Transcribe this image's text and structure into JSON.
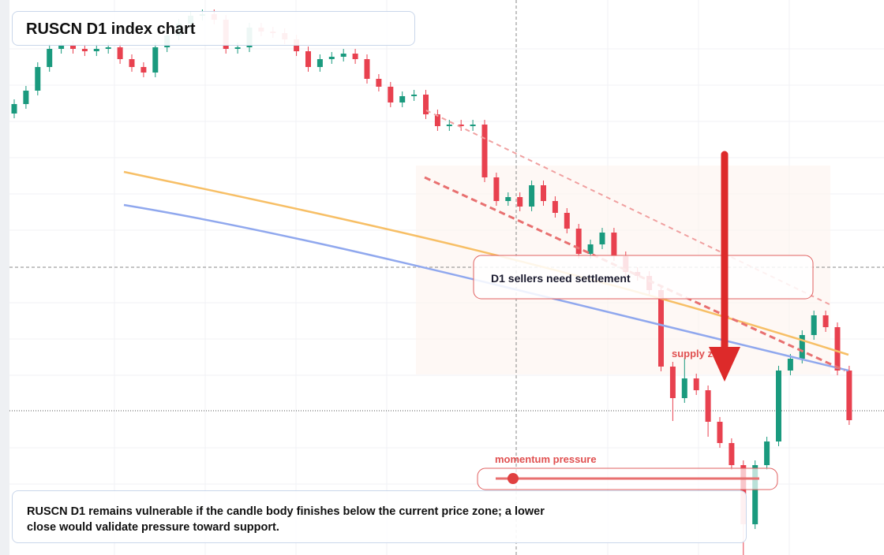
{
  "header": {
    "title": "RUSCN D1 index chart"
  },
  "callouts": {
    "settlement": "D1 sellers need settlement",
    "supply": "supply zone",
    "momentum": "momentum pressure"
  },
  "note": "RUSCN D1 remains vulnerable if the candle body finishes below the current price zone; a lower close would validate pressure toward support.",
  "chart_data": {
    "type": "candlestick",
    "up_color": "#1a9a7e",
    "down_color": "#e8414f",
    "ylim": [
      0,
      704
    ],
    "open": [
      560,
      572,
      589,
      619,
      642,
      646,
      642,
      639,
      642,
      644,
      629,
      619,
      612,
      644,
      659,
      674,
      684,
      686,
      679,
      642,
      644,
      669,
      664,
      662,
      654,
      639,
      619,
      629,
      632,
      636,
      629,
      604,
      594,
      574,
      582,
      584,
      559,
      544,
      546,
      544,
      546,
      479,
      449,
      454,
      442,
      469,
      449,
      434,
      414,
      382,
      394,
      409,
      379,
      359,
      354,
      336,
      239,
      199,
      224,
      209,
      169,
      142,
      114,
      39,
      114,
      144,
      234,
      249,
      279,
      304,
      289,
      234
    ],
    "high": [
      578,
      595,
      625,
      648,
      652,
      652,
      648,
      648,
      650,
      650,
      635,
      625,
      650,
      665,
      680,
      690,
      692,
      692,
      685,
      650,
      675,
      675,
      670,
      668,
      660,
      645,
      635,
      638,
      642,
      642,
      635,
      610,
      600,
      588,
      590,
      590,
      565,
      552,
      552,
      552,
      552,
      485,
      460,
      460,
      475,
      475,
      455,
      440,
      420,
      400,
      415,
      415,
      385,
      365,
      360,
      342,
      245,
      250,
      230,
      215,
      175,
      148,
      120,
      120,
      150,
      240,
      255,
      285,
      310,
      310,
      295,
      240
    ],
    "low": [
      554,
      566,
      583,
      613,
      636,
      636,
      633,
      633,
      636,
      623,
      613,
      606,
      606,
      638,
      653,
      668,
      678,
      673,
      636,
      636,
      638,
      658,
      656,
      648,
      633,
      613,
      613,
      623,
      626,
      623,
      598,
      588,
      568,
      568,
      576,
      553,
      538,
      538,
      538,
      538,
      473,
      443,
      443,
      436,
      436,
      443,
      428,
      408,
      376,
      376,
      388,
      373,
      353,
      348,
      330,
      233,
      170,
      193,
      203,
      150,
      136,
      108,
      0,
      33,
      108,
      138,
      228,
      243,
      273,
      283,
      228,
      165
    ],
    "close": [
      572,
      589,
      619,
      642,
      646,
      642,
      639,
      642,
      644,
      629,
      619,
      612,
      644,
      659,
      674,
      684,
      686,
      679,
      642,
      644,
      669,
      664,
      662,
      654,
      639,
      619,
      629,
      632,
      636,
      629,
      604,
      594,
      574,
      582,
      584,
      559,
      544,
      546,
      544,
      546,
      479,
      449,
      454,
      442,
      469,
      449,
      434,
      414,
      382,
      394,
      409,
      379,
      359,
      354,
      336,
      239,
      199,
      224,
      209,
      169,
      142,
      114,
      39,
      114,
      144,
      234,
      249,
      279,
      304,
      289,
      234,
      171
    ]
  }
}
